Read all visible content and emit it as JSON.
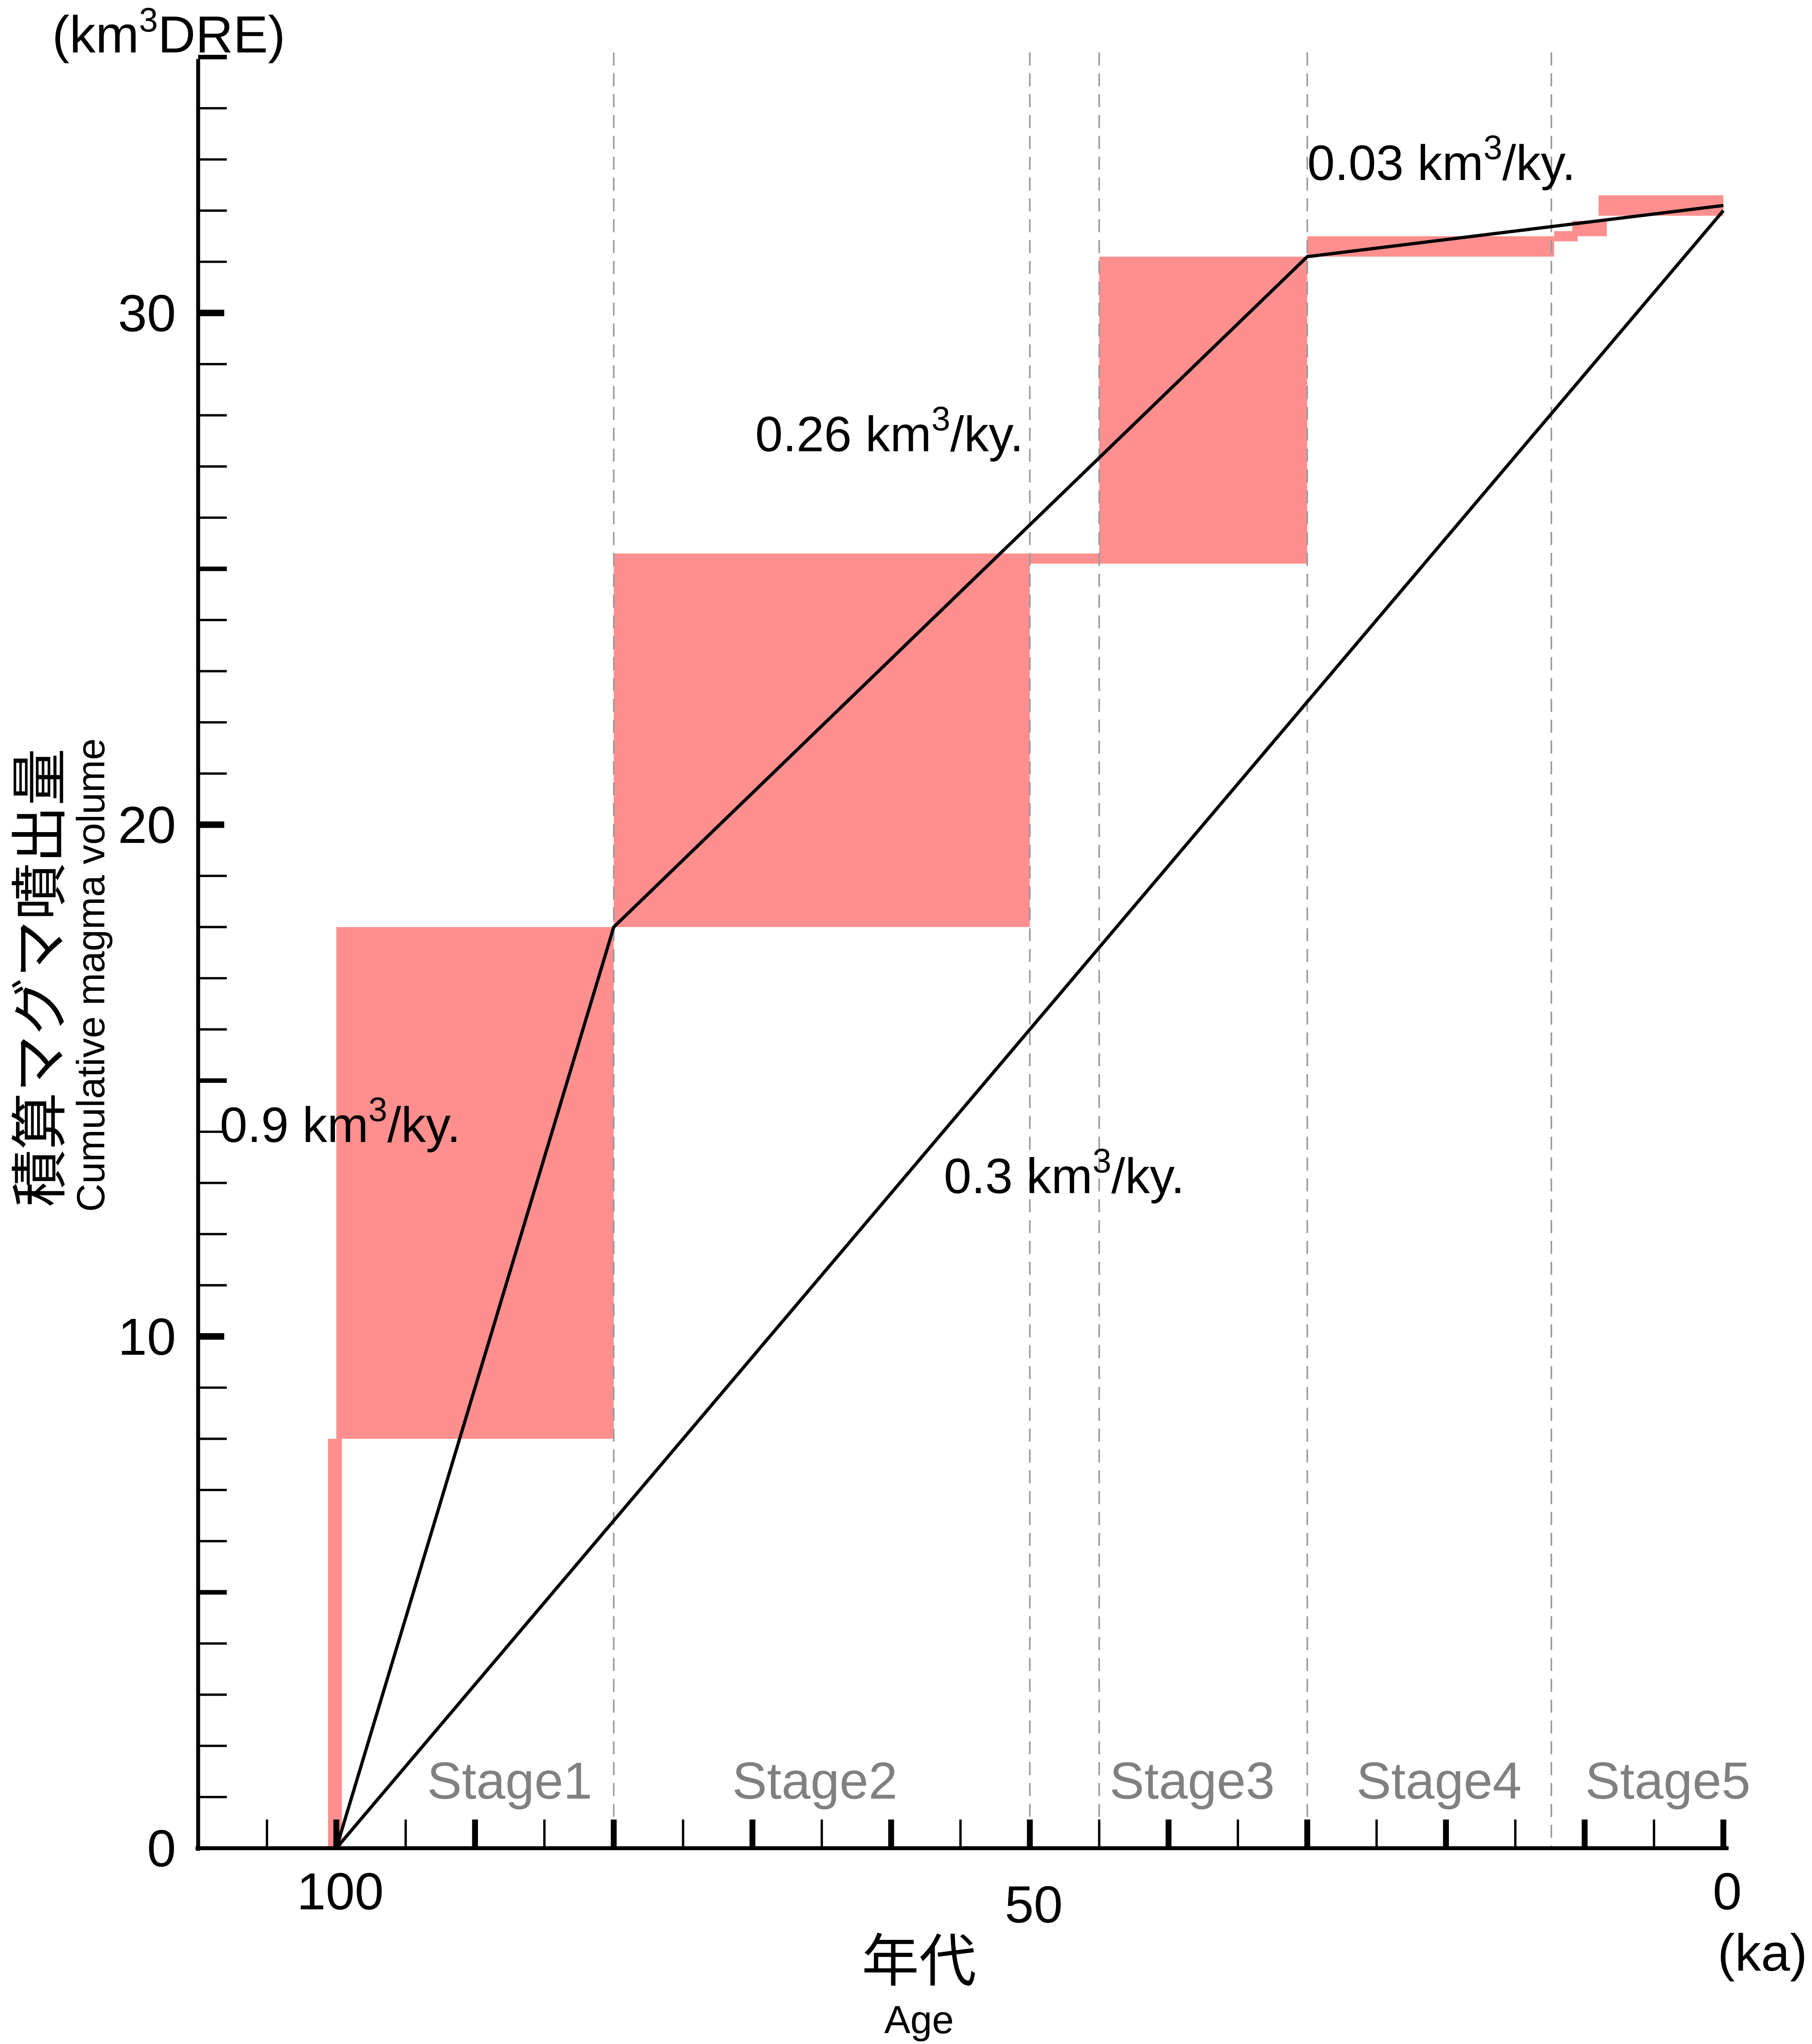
{
  "chart_data": {
    "type": "area",
    "xlabel": "年代",
    "xlabel_en": "Age",
    "x_unit": "(ka)",
    "ylabel": "積算マグマ噴出量",
    "ylabel_en": "Cumulative magma volume",
    "y_unit": {
      "prefix": "(km",
      "sup": "3",
      "suffix": "DRE)"
    },
    "xlim": [
      110,
      0
    ],
    "ylim": [
      0,
      35
    ],
    "x_reversed": true,
    "grid": false,
    "x_ticks": [
      {
        "value": 100,
        "label": "100"
      },
      {
        "value": 50,
        "label": "50"
      },
      {
        "value": 0,
        "label": "0"
      }
    ],
    "y_ticks": [
      {
        "value": 0,
        "label": "0"
      },
      {
        "value": 10,
        "label": "10"
      },
      {
        "value": 20,
        "label": "20"
      },
      {
        "value": 30,
        "label": "30"
      }
    ],
    "fill_color": "#FF8F8F",
    "volume_ranges": [
      {
        "age_from": 100.6,
        "age_to": 99.6,
        "vol_low": 0,
        "vol_high": 8.0
      },
      {
        "age_from": 100,
        "age_to": 80,
        "vol_low": 8.0,
        "vol_high": 18.0
      },
      {
        "age_from": 80,
        "age_to": 50,
        "vol_low": 18.0,
        "vol_high": 25.3
      },
      {
        "age_from": 50,
        "age_to": 45,
        "vol_low": 25.1,
        "vol_high": 25.3
      },
      {
        "age_from": 45,
        "age_to": 30,
        "vol_low": 25.1,
        "vol_high": 31.1
      },
      {
        "age_from": 30,
        "age_to": 12.2,
        "vol_low": 31.1,
        "vol_high": 31.5
      },
      {
        "age_from": 12.2,
        "age_to": 10.5,
        "vol_low": 31.4,
        "vol_high": 31.6
      },
      {
        "age_from": 10.9,
        "age_to": 8.4,
        "vol_low": 31.5,
        "vol_high": 31.8
      },
      {
        "age_from": 9,
        "age_to": 0,
        "vol_low": 31.9,
        "vol_high": 32.3
      }
    ],
    "rate_lines": [
      {
        "points": [
          [
            100,
            0
          ],
          [
            80,
            18.0
          ],
          [
            30,
            31.1
          ],
          [
            0,
            32.1
          ]
        ]
      },
      {
        "points": [
          [
            100,
            0
          ],
          [
            0,
            32.0
          ]
        ]
      }
    ],
    "stage_boundaries": [
      80,
      50,
      45,
      30,
      12.4
    ],
    "stages": [
      {
        "label": "Stage1",
        "age": 87.5
      },
      {
        "label": "Stage2",
        "age": 65.5
      },
      {
        "label": "Stage3",
        "age": 38.3
      },
      {
        "label": "Stage4",
        "age": 20.5
      },
      {
        "label": "Stage5",
        "age": 4.0
      }
    ],
    "annotations": [
      {
        "prefix": "0.9 km",
        "sup": "3",
        "suffix": "/ky.",
        "age": 108.4,
        "vol": 13.8
      },
      {
        "prefix": "0.26 km",
        "sup": "3",
        "suffix": "/ky.",
        "age": 69.8,
        "vol": 27.3
      },
      {
        "prefix": "0.03 km",
        "sup": "3",
        "suffix": "/ky.",
        "age": 30.0,
        "vol": 32.6
      },
      {
        "prefix": "0.3 km",
        "sup": "3",
        "suffix": "/ky.",
        "age": 56.2,
        "vol": 12.8
      }
    ]
  }
}
